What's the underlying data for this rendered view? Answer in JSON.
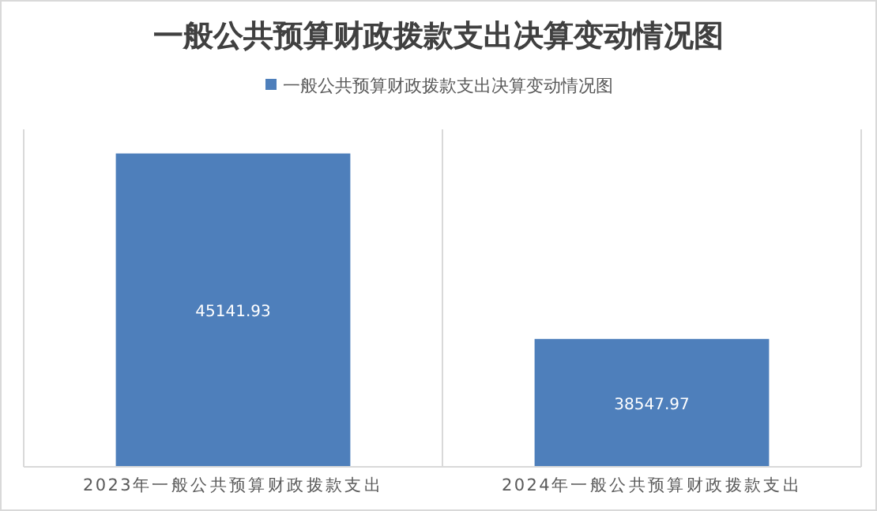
{
  "chart_data": {
    "type": "bar",
    "title": "一般公共预算财政拨款支出决算变动情况图",
    "categories": [
      "2023年一般公共预算财政拨款支出",
      "2024年一般公共预算财政拨款支出"
    ],
    "series": [
      {
        "name": "一般公共预算财政拨款支出决算变动情况图",
        "color": "#4e7fbb",
        "values": [
          45141.93,
          38547.97
        ]
      }
    ],
    "ylim": [
      34000,
      46000
    ],
    "data_labels": true,
    "legend": "top",
    "grid": "x",
    "tick_labels": "x"
  }
}
